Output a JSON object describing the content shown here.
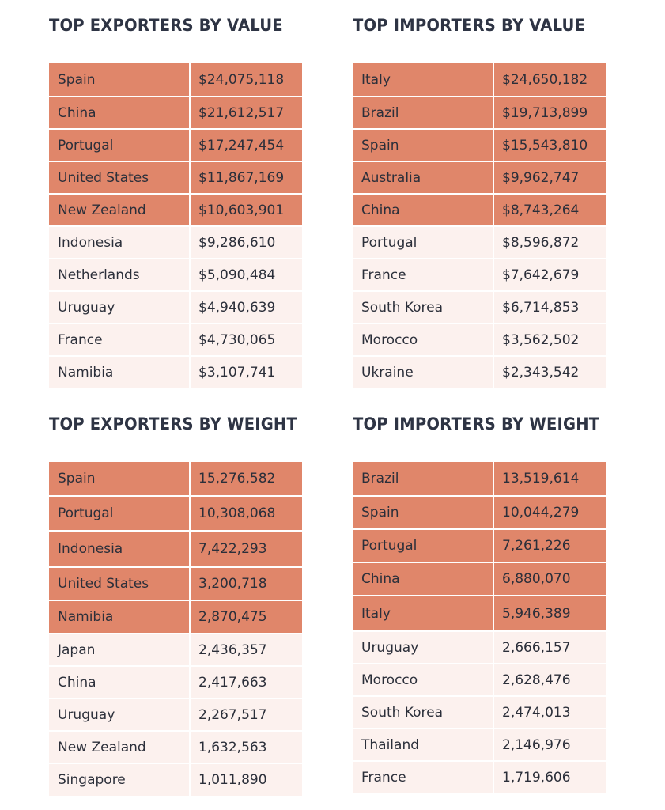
{
  "panels": [
    {
      "title": "TOP EXPORTERS BY VALUE",
      "rows": [
        {
          "country": "Spain",
          "value": "$24,075,118",
          "top": true
        },
        {
          "country": "China",
          "value": "$21,612,517",
          "top": true
        },
        {
          "country": "Portugal",
          "value": "$17,247,454",
          "top": true
        },
        {
          "country": "United States",
          "value": "$11,867,169",
          "top": true
        },
        {
          "country": "New Zealand",
          "value": "$10,603,901",
          "top": true
        },
        {
          "country": "Indonesia",
          "value": "$9,286,610",
          "top": false
        },
        {
          "country": "Netherlands",
          "value": "$5,090,484",
          "top": false
        },
        {
          "country": "Uruguay",
          "value": "$4,940,639",
          "top": false
        },
        {
          "country": "France",
          "value": "$4,730,065",
          "top": false
        },
        {
          "country": "Namibia",
          "value": "$3,107,741",
          "top": false
        }
      ]
    },
    {
      "title": "TOP IMPORTERS BY VALUE",
      "rows": [
        {
          "country": "Italy",
          "value": "$24,650,182",
          "top": true
        },
        {
          "country": "Brazil",
          "value": "$19,713,899",
          "top": true
        },
        {
          "country": "Spain",
          "value": "$15,543,810",
          "top": true
        },
        {
          "country": "Australia",
          "value": "$9,962,747",
          "top": true
        },
        {
          "country": "China",
          "value": "$8,743,264",
          "top": true
        },
        {
          "country": "Portugal",
          "value": "$8,596,872",
          "top": false
        },
        {
          "country": "France",
          "value": "$7,642,679",
          "top": false
        },
        {
          "country": "South Korea",
          "value": "$6,714,853",
          "top": false
        },
        {
          "country": "Morocco",
          "value": "$3,562,502",
          "top": false
        },
        {
          "country": "Ukraine",
          "value": "$2,343,542",
          "top": false
        }
      ]
    },
    {
      "title": "TOP EXPORTERS BY WEIGHT",
      "rows": [
        {
          "country": "Spain",
          "value": "15,276,582",
          "top": true
        },
        {
          "country": "Portugal",
          "value": "10,308,068",
          "top": true
        },
        {
          "country": "Indonesia",
          "value": "7,422,293",
          "top": true
        },
        {
          "country": "United States",
          "value": "3,200,718",
          "top": true
        },
        {
          "country": "Namibia",
          "value": "2,870,475",
          "top": true
        },
        {
          "country": "Japan",
          "value": "2,436,357",
          "top": false
        },
        {
          "country": "China",
          "value": "2,417,663",
          "top": false
        },
        {
          "country": "Uruguay",
          "value": "2,267,517",
          "top": false
        },
        {
          "country": "New Zealand",
          "value": "1,632,563",
          "top": false
        },
        {
          "country": "Singapore",
          "value": "1,011,890",
          "top": false
        }
      ]
    },
    {
      "title": "TOP IMPORTERS BY WEIGHT",
      "rows": [
        {
          "country": "Brazil",
          "value": "13,519,614",
          "top": true
        },
        {
          "country": "Spain",
          "value": "10,044,279",
          "top": true
        },
        {
          "country": "Portugal",
          "value": "7,261,226",
          "top": true
        },
        {
          "country": "China",
          "value": "6,880,070",
          "top": true
        },
        {
          "country": "Italy",
          "value": "5,946,389",
          "top": true
        },
        {
          "country": "Uruguay",
          "value": "2,666,157",
          "top": false
        },
        {
          "country": "Morocco",
          "value": "2,628,476",
          "top": false
        },
        {
          "country": "South Korea",
          "value": "2,474,013",
          "top": false
        },
        {
          "country": "Thailand",
          "value": "2,146,976",
          "top": false
        },
        {
          "country": "France",
          "value": "1,719,606",
          "top": false
        }
      ]
    }
  ],
  "colors": {
    "highlight_row": "#e0866a",
    "plain_row": "#fcf1ee",
    "title_text": "#2e3444",
    "cell_text": "#2b2f3a"
  }
}
